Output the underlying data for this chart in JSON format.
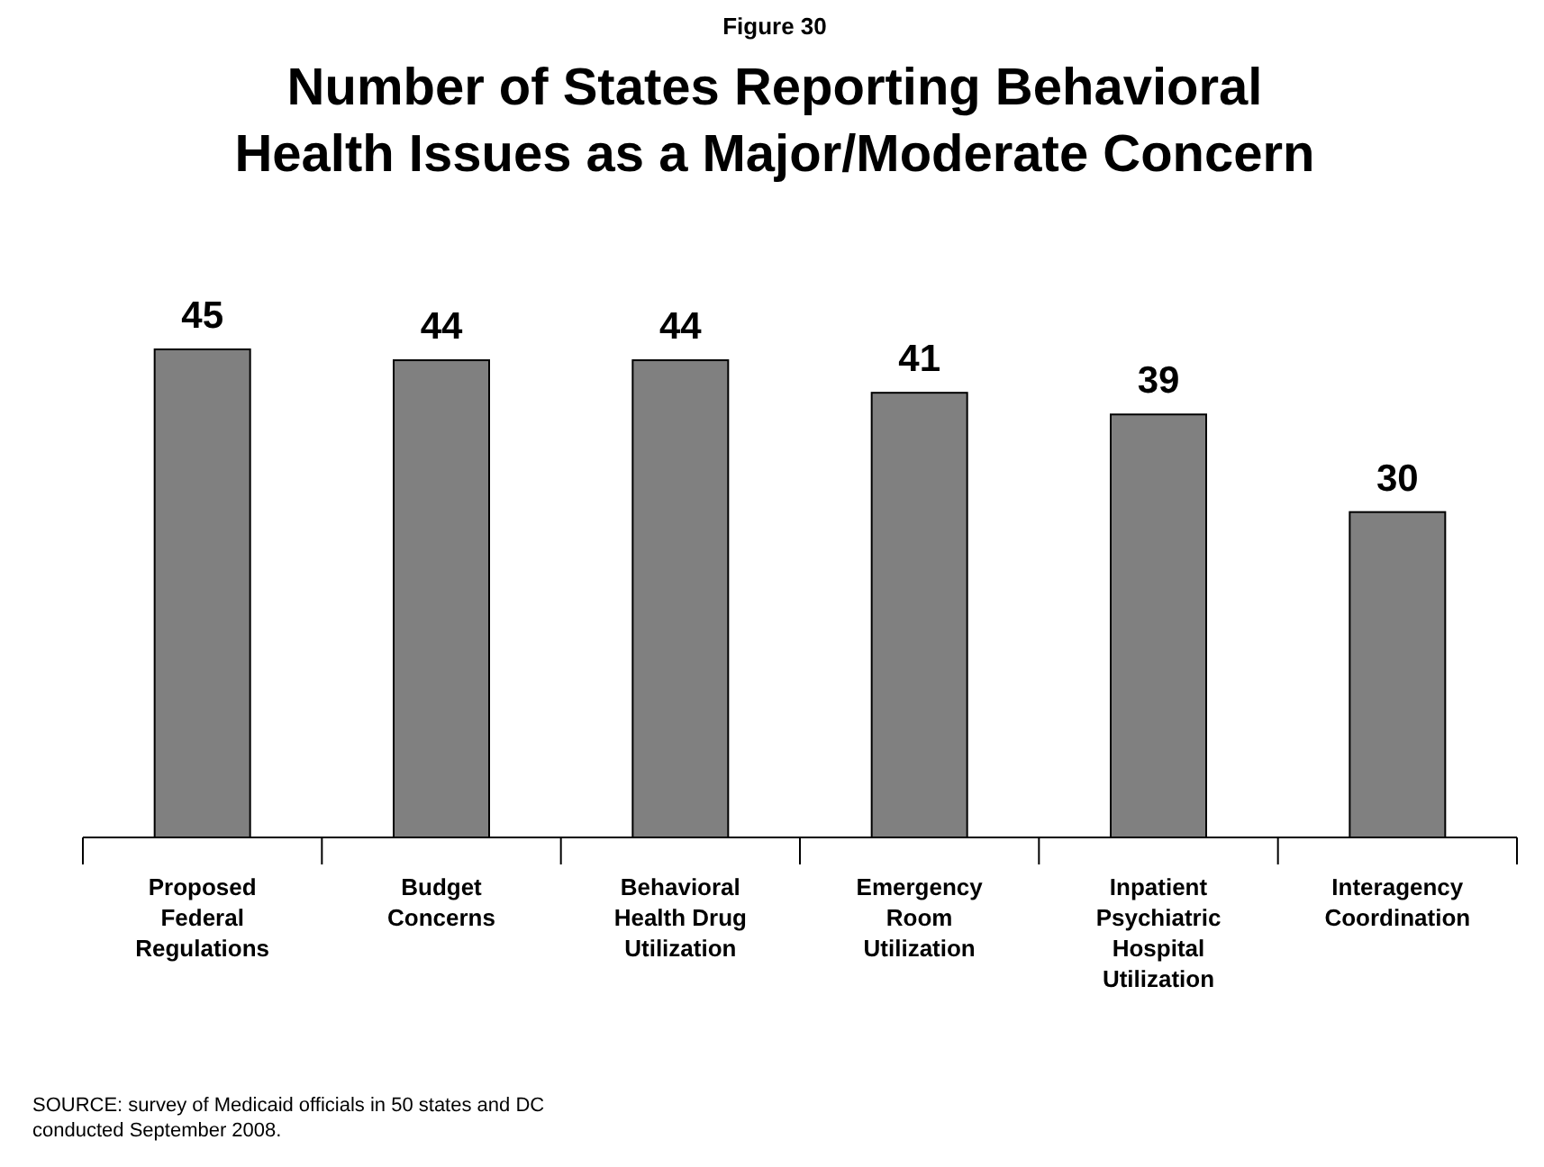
{
  "chart_data": {
    "type": "bar",
    "subtitle": "Figure 30",
    "title": "Number of States Reporting Behavioral Health Issues as a Major/Moderate Concern",
    "categories": [
      "Proposed Federal Regulations",
      "Budget Concerns",
      "Behavioral Health Drug Utilization",
      "Emergency Room Utilization",
      "Inpatient Psychiatric Hospital Utilization",
      "Interagency Coordination"
    ],
    "values": [
      45,
      44,
      44,
      41,
      39,
      30
    ],
    "color": "#808080",
    "data_labels": true,
    "annotations": [
      "SOURCE: survey of Medicaid officials in 50 states and DC conducted September 2008."
    ]
  }
}
